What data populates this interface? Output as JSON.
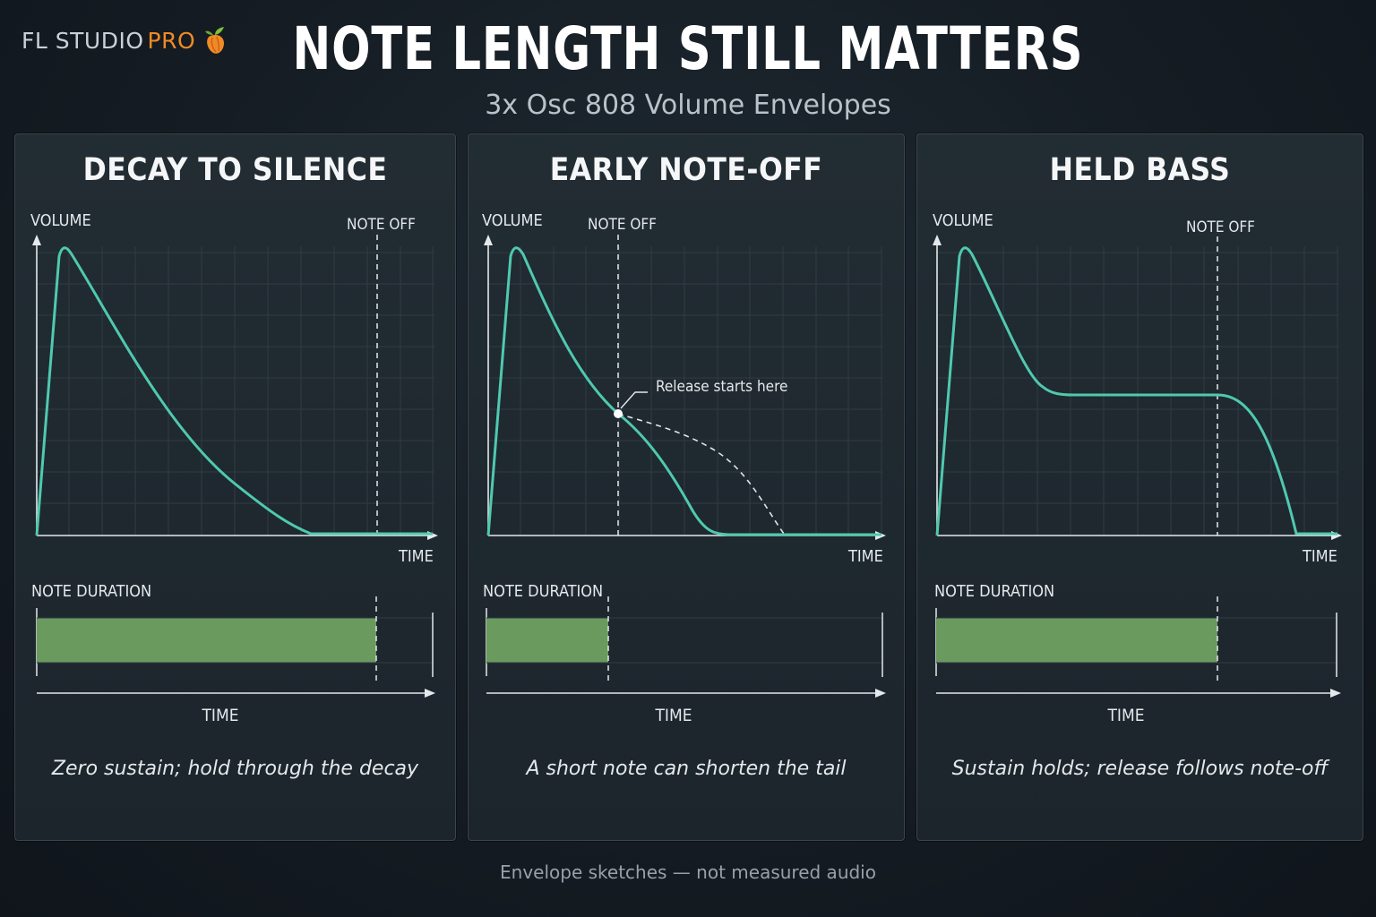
{
  "brand": {
    "name": "FL STUDIO",
    "tier": "PRO",
    "logo_icon": "fruit-logo-icon"
  },
  "header": {
    "title": "NOTE LENGTH STILL MATTERS",
    "subtitle": "3x Osc 808 Volume Envelopes"
  },
  "axis_labels": {
    "volume": "VOLUME",
    "time": "TIME",
    "note_off": "NOTE OFF",
    "note_duration": "NOTE DURATION"
  },
  "panels": [
    {
      "title": "DECAY TO SILENCE",
      "note_off_fraction": 0.85,
      "envelope": "decay to zero before note-off",
      "caption": "Zero sustain; hold through the decay"
    },
    {
      "title": "EARLY NOTE-OFF",
      "note_off_fraction": 0.33,
      "envelope": "release begins at note-off, cutting the decay short",
      "annotation": "Release starts here",
      "caption": "A short note can shorten the tail"
    },
    {
      "title": "HELD BASS",
      "note_off_fraction": 0.7,
      "envelope": "decay to sustain level, release after note-off",
      "caption": "Sustain holds; release follows note-off"
    }
  ],
  "colors": {
    "envelope": "#4fc9b0",
    "note_bar": "#6a9a5e",
    "brand_pro": "#f08a24",
    "panel_bg": "#1f2930"
  },
  "footer": {
    "note": "Envelope sketches — not measured audio"
  }
}
